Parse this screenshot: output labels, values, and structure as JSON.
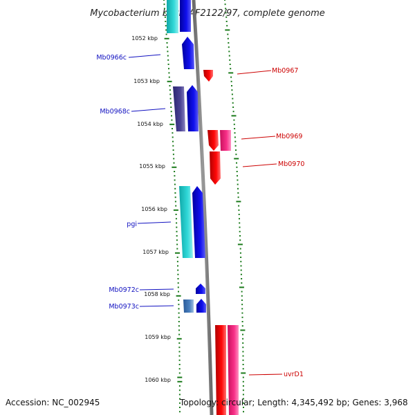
{
  "title": "Mycobacterium bovis AF2122/97, complete genome",
  "footer": {
    "accession": "Accession: NC_002945",
    "topology": "Topology: circular; Length: 4,345,492 bp; Genes: 3,968"
  },
  "ticks": [
    "1052 kbp",
    "1053 kbp",
    "1054 kbp",
    "1055 kbp",
    "1056 kbp",
    "1057 kbp",
    "1058 kbp",
    "1059 kbp",
    "1060 kbp"
  ],
  "genes_reverse": [
    "Mb0966c",
    "Mb0968c",
    "pgi",
    "Mb0972c",
    "Mb0973c"
  ],
  "genes_forward": [
    "Mb0967",
    "Mb0969",
    "Mb0970",
    "uvrD1"
  ],
  "colors": {
    "reverse_label": "#1010c0",
    "forward_label": "#cc0000",
    "blue": "#0a0ad8",
    "cyan": "#20c8c8",
    "navy": "#443c8c",
    "steel": "#4a7ab8",
    "red": "#ee0000",
    "pink": "#f0287c",
    "backbone": "#8a8a8a",
    "tick": "#1a7a1a"
  }
}
